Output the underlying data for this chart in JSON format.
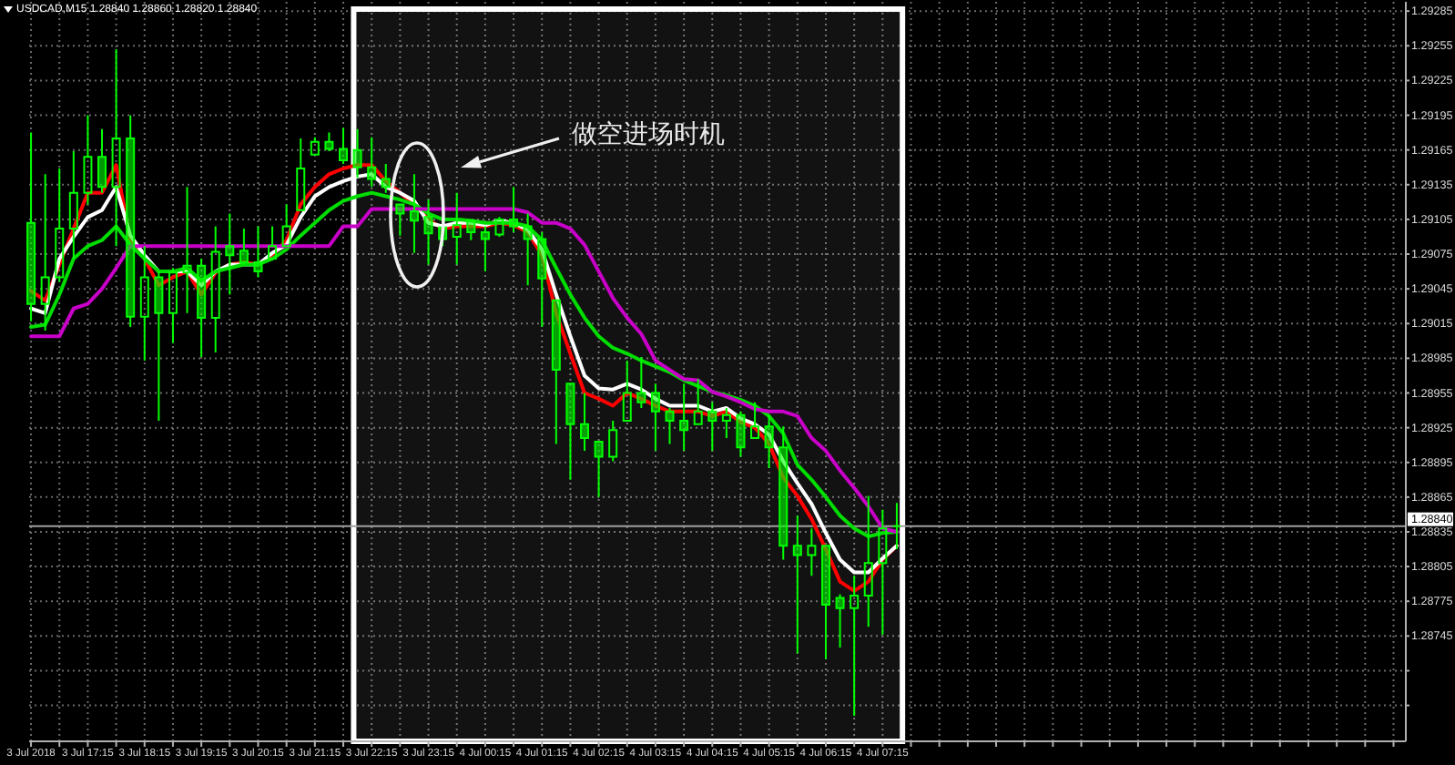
{
  "chart_data": {
    "type": "candlestick",
    "title": "USDCAD,M15 1.28840 1.28860 1.28820 1.28840",
    "color": "#00ff00",
    "x": [
      "2018-07-03T16:15",
      "2018-07-03T16:30",
      "2018-07-03T16:45",
      "2018-07-03T17:00",
      "2018-07-03T17:15",
      "2018-07-03T17:30",
      "2018-07-03T17:45",
      "2018-07-03T18:00",
      "2018-07-03T18:15",
      "2018-07-03T18:30",
      "2018-07-03T18:45",
      "2018-07-03T19:00",
      "2018-07-03T19:15",
      "2018-07-03T19:30",
      "2018-07-03T19:45",
      "2018-07-03T20:00",
      "2018-07-03T20:15",
      "2018-07-03T20:30",
      "2018-07-03T20:45",
      "2018-07-03T21:00",
      "2018-07-03T21:15",
      "2018-07-03T21:30",
      "2018-07-03T21:45",
      "2018-07-03T22:00",
      "2018-07-03T22:15",
      "2018-07-03T22:30",
      "2018-07-03T22:45",
      "2018-07-03T23:00",
      "2018-07-03T23:15",
      "2018-07-03T23:30",
      "2018-07-03T23:45",
      "2018-07-04T00:00",
      "2018-07-04T00:15",
      "2018-07-04T00:30",
      "2018-07-04T00:45",
      "2018-07-04T01:00",
      "2018-07-04T01:15",
      "2018-07-04T01:30",
      "2018-07-04T01:45",
      "2018-07-04T02:00",
      "2018-07-04T02:15",
      "2018-07-04T02:30",
      "2018-07-04T02:45",
      "2018-07-04T03:00",
      "2018-07-04T03:15",
      "2018-07-04T03:30",
      "2018-07-04T03:45",
      "2018-07-04T04:00",
      "2018-07-04T04:15",
      "2018-07-04T04:30",
      "2018-07-04T04:45",
      "2018-07-04T05:00",
      "2018-07-04T05:15",
      "2018-07-04T05:30",
      "2018-07-04T05:45",
      "2018-07-04T06:00",
      "2018-07-04T06:15",
      "2018-07-04T06:30",
      "2018-07-04T06:45",
      "2018-07-04T07:00",
      "2018-07-04T07:15",
      "2018-07-04T07:30"
    ],
    "ohlc": [
      [
        1.29102,
        1.2918,
        1.29017,
        1.29032
      ],
      [
        1.29032,
        1.29144,
        1.29009,
        1.29055
      ],
      [
        1.29055,
        1.29149,
        1.29051,
        1.29097
      ],
      [
        1.29097,
        1.29164,
        1.29071,
        1.29128
      ],
      [
        1.29128,
        1.29195,
        1.29118,
        1.29159
      ],
      [
        1.29159,
        1.29183,
        1.29128,
        1.29133
      ],
      [
        1.29133,
        1.29252,
        1.29082,
        1.29175
      ],
      [
        1.29175,
        1.29195,
        1.29012,
        1.29021
      ],
      [
        1.29021,
        1.29082,
        1.28983,
        1.29055
      ],
      [
        1.29055,
        1.2906,
        1.28931,
        1.29024
      ],
      [
        1.29024,
        1.29063,
        1.28998,
        1.29059
      ],
      [
        1.29059,
        1.29133,
        1.29024,
        1.29065
      ],
      [
        1.29065,
        1.29071,
        1.28986,
        1.2902
      ],
      [
        1.2902,
        1.29099,
        1.2899,
        1.29077
      ],
      [
        1.29082,
        1.2911,
        1.2904,
        1.29074
      ],
      [
        1.29078,
        1.29097,
        1.29066,
        1.29068
      ],
      [
        1.29068,
        1.29099,
        1.29055,
        1.2906
      ],
      [
        1.29071,
        1.29099,
        1.29071,
        1.29082
      ],
      [
        1.29082,
        1.29118,
        1.29082,
        1.29099
      ],
      [
        1.29113,
        1.29175,
        1.29113,
        1.29149
      ],
      [
        1.29161,
        1.29176,
        1.29161,
        1.29172
      ],
      [
        1.29172,
        1.2918,
        1.29164,
        1.29166
      ],
      [
        1.29166,
        1.29184,
        1.29153,
        1.29156
      ],
      [
        1.29165,
        1.29183,
        1.29141,
        1.2915
      ],
      [
        1.2915,
        1.29176,
        1.29133,
        1.2914
      ],
      [
        1.2914,
        1.29153,
        1.29128,
        1.29133
      ],
      [
        1.29118,
        1.29118,
        1.29091,
        1.2911
      ],
      [
        1.29112,
        1.29144,
        1.29076,
        1.29104
      ],
      [
        1.29107,
        1.29122,
        1.29066,
        1.29093
      ],
      [
        1.29098,
        1.29105,
        1.29082,
        1.29088
      ],
      [
        1.2909,
        1.29128,
        1.29066,
        1.291
      ],
      [
        1.29104,
        1.29105,
        1.29087,
        1.29094
      ],
      [
        1.29094,
        1.29099,
        1.2906,
        1.29088
      ],
      [
        1.29092,
        1.29107,
        1.2909,
        1.29105
      ],
      [
        1.29105,
        1.29133,
        1.29094,
        1.29099
      ],
      [
        1.29099,
        1.2911,
        1.29048,
        1.29088
      ],
      [
        1.29088,
        1.29094,
        1.29012,
        1.29054
      ],
      [
        1.29035,
        1.29035,
        1.28911,
        1.28975
      ],
      [
        1.28963,
        1.28963,
        1.2888,
        1.28928
      ],
      [
        1.28928,
        1.28955,
        1.28905,
        1.28916
      ],
      [
        1.28913,
        1.28913,
        1.28865,
        1.289
      ],
      [
        1.289,
        1.28931,
        1.28896,
        1.28923
      ],
      [
        1.28931,
        1.28983,
        1.28931,
        1.28955
      ],
      [
        1.28955,
        1.28986,
        1.28942,
        1.28947
      ],
      [
        1.28955,
        1.28963,
        1.28905,
        1.28939
      ],
      [
        1.28939,
        1.28942,
        1.28911,
        1.28931
      ],
      [
        1.28931,
        1.28963,
        1.28905,
        1.28923
      ],
      [
        1.28928,
        1.28967,
        1.28928,
        1.28939
      ],
      [
        1.28939,
        1.28947,
        1.28905,
        1.28931
      ],
      [
        1.28931,
        1.28942,
        1.28916,
        1.28936
      ],
      [
        1.28936,
        1.28939,
        1.289,
        1.28908
      ],
      [
        1.28916,
        1.28947,
        1.28916,
        1.28926
      ],
      [
        1.28926,
        1.28936,
        1.2889,
        1.28908
      ],
      [
        1.28908,
        1.28926,
        1.28811,
        1.28823
      ],
      [
        1.28823,
        1.28849,
        1.2873,
        1.28815
      ],
      [
        1.28815,
        1.28838,
        1.28797,
        1.28823
      ],
      [
        1.28823,
        1.28823,
        1.28725,
        1.28772
      ],
      [
        1.28778,
        1.28781,
        1.28735,
        1.28769
      ],
      [
        1.28769,
        1.28797,
        1.28676,
        1.2878
      ],
      [
        1.2878,
        1.28866,
        1.28753,
        1.28808
      ],
      [
        1.28808,
        1.28854,
        1.28746,
        1.28838
      ],
      [
        1.2884,
        1.2886,
        1.2882,
        1.2884
      ]
    ],
    "series": [
      {
        "type": "line",
        "color": "#ff0000",
        "values": [
          1.29043,
          1.29035,
          1.29066,
          1.29097,
          1.29128,
          1.29128,
          1.29152,
          1.29087,
          1.29071,
          1.29048,
          1.29055,
          1.2906,
          1.2904,
          1.29059,
          1.29066,
          1.29068,
          1.29066,
          1.29074,
          1.29087,
          1.29118,
          1.29133,
          1.29144,
          1.29149,
          1.29152,
          1.29152,
          1.29138,
          1.29128,
          1.29118,
          1.29105,
          1.29097,
          1.29099,
          1.29099,
          1.29099,
          1.29102,
          1.291,
          1.29094,
          1.29074,
          1.29024,
          1.28989,
          1.28955,
          1.2895,
          1.28944,
          1.28955,
          1.2895,
          1.28944,
          1.28939,
          1.28939,
          1.28939,
          1.28935,
          1.28939,
          1.2893,
          1.28925,
          1.28911,
          1.28882,
          1.28866,
          1.28846,
          1.2882,
          1.28792,
          1.28784,
          1.28792,
          1.28811,
          1.28823
        ]
      },
      {
        "type": "line",
        "color": "#ffffff",
        "values": [
          1.29028,
          1.29024,
          1.29071,
          1.2909,
          1.29107,
          1.29113,
          1.29133,
          1.29091,
          1.29074,
          1.2906,
          1.2906,
          1.2906,
          1.29048,
          1.2906,
          1.29066,
          1.29066,
          1.29066,
          1.29076,
          1.29083,
          1.29107,
          1.29125,
          1.29133,
          1.29138,
          1.29142,
          1.29144,
          1.29133,
          1.29128,
          1.29121,
          1.29102,
          1.29099,
          1.29102,
          1.29102,
          1.291,
          1.29104,
          1.29102,
          1.29096,
          1.29079,
          1.2904,
          1.29004,
          1.2897,
          1.28959,
          1.28958,
          1.28963,
          1.28958,
          1.2895,
          1.28944,
          1.28944,
          1.28944,
          1.28939,
          1.28942,
          1.28933,
          1.28928,
          1.28919,
          1.28896,
          1.28877,
          1.28859,
          1.28834,
          1.28811,
          1.288,
          1.288,
          1.28812,
          1.28823
        ]
      },
      {
        "type": "line",
        "color": "#00dd00",
        "values": [
          1.29012,
          1.29014,
          1.2904,
          1.29071,
          1.29082,
          1.29087,
          1.29099,
          1.29083,
          1.29071,
          1.2906,
          1.2906,
          1.29063,
          1.29052,
          1.2906,
          1.29063,
          1.29066,
          1.29066,
          1.29071,
          1.29079,
          1.29091,
          1.29102,
          1.29113,
          1.29121,
          1.29125,
          1.29128,
          1.29125,
          1.29122,
          1.29118,
          1.2911,
          1.29105,
          1.29105,
          1.29104,
          1.29102,
          1.29102,
          1.29102,
          1.29099,
          1.29087,
          1.29063,
          1.2904,
          1.2902,
          1.29004,
          1.28994,
          1.28989,
          1.28983,
          1.28978,
          1.28973,
          1.28966,
          1.28961,
          1.28956,
          1.28953,
          1.28949,
          1.28944,
          1.28935,
          1.2892,
          1.28893,
          1.2888,
          1.28865,
          1.28849,
          1.28838,
          1.28831,
          1.28834,
          1.28835
        ]
      },
      {
        "type": "line",
        "color": "#c800c8",
        "values": [
          1.29004,
          1.29004,
          1.29004,
          1.29028,
          1.29032,
          1.29045,
          1.29063,
          1.29082,
          1.29082,
          1.29082,
          1.29082,
          1.29082,
          1.29082,
          1.29082,
          1.29082,
          1.29082,
          1.29082,
          1.29082,
          1.29082,
          1.29082,
          1.29082,
          1.29082,
          1.29099,
          1.29099,
          1.29114,
          1.29114,
          1.29114,
          1.29114,
          1.29114,
          1.29114,
          1.29114,
          1.29114,
          1.29114,
          1.29114,
          1.29114,
          1.29111,
          1.29102,
          1.29102,
          1.29097,
          1.29083,
          1.2906,
          1.29037,
          1.2902,
          1.29006,
          1.28983,
          1.28975,
          1.28967,
          1.28966,
          1.28956,
          1.28952,
          1.28947,
          1.28941,
          1.28939,
          1.28939,
          1.28935,
          1.28916,
          1.28905,
          1.28888,
          1.28873,
          1.28857,
          1.28838,
          1.28835
        ]
      }
    ],
    "xlim": [
      "2018-07-03T16:13",
      "2018-07-04T16:28"
    ],
    "xticks": [
      {
        "value": "2018-07-03T16:15",
        "label": "3 Jul 2018"
      },
      {
        "value": "2018-07-03T16:45",
        "label": null
      },
      {
        "value": "2018-07-03T17:15",
        "label": "3 Jul 17:15"
      },
      {
        "value": "2018-07-03T17:45",
        "label": null
      },
      {
        "value": "2018-07-03T18:15",
        "label": "3 Jul 18:15"
      },
      {
        "value": "2018-07-03T18:45",
        "label": null
      },
      {
        "value": "2018-07-03T19:15",
        "label": "3 Jul 19:15"
      },
      {
        "value": "2018-07-03T19:45",
        "label": null
      },
      {
        "value": "2018-07-03T20:15",
        "label": "3 Jul 20:15"
      },
      {
        "value": "2018-07-03T20:45",
        "label": null
      },
      {
        "value": "2018-07-03T21:15",
        "label": "3 Jul 21:15"
      },
      {
        "value": "2018-07-03T21:45",
        "label": null
      },
      {
        "value": "2018-07-03T22:15",
        "label": "3 Jul 22:15"
      },
      {
        "value": "2018-07-03T22:45",
        "label": null
      },
      {
        "value": "2018-07-03T23:15",
        "label": "3 Jul 23:15"
      },
      {
        "value": "2018-07-03T23:45",
        "label": null
      },
      {
        "value": "2018-07-04T00:15",
        "label": "4 Jul 00:15"
      },
      {
        "value": "2018-07-04T00:45",
        "label": null
      },
      {
        "value": "2018-07-04T01:15",
        "label": "4 Jul 01:15"
      },
      {
        "value": "2018-07-04T01:45",
        "label": null
      },
      {
        "value": "2018-07-04T02:15",
        "label": "4 Jul 02:15"
      },
      {
        "value": "2018-07-04T02:45",
        "label": null
      },
      {
        "value": "2018-07-04T03:15",
        "label": "4 Jul 03:15"
      },
      {
        "value": "2018-07-04T03:45",
        "label": null
      },
      {
        "value": "2018-07-04T04:15",
        "label": "4 Jul 04:15"
      },
      {
        "value": "2018-07-04T04:45",
        "label": null
      },
      {
        "value": "2018-07-04T05:15",
        "label": "4 Jul 05:15"
      },
      {
        "value": "2018-07-04T05:45",
        "label": null
      },
      {
        "value": "2018-07-04T06:15",
        "label": "4 Jul 06:15"
      },
      {
        "value": "2018-07-04T06:45",
        "label": null
      },
      {
        "value": "2018-07-04T07:15",
        "label": "4 Jul 07:15"
      },
      {
        "value": "2018-07-04T07:45",
        "label": null
      },
      {
        "value": "2018-07-04T08:15",
        "label": null
      },
      {
        "value": "2018-07-04T08:45",
        "label": null
      },
      {
        "value": "2018-07-04T09:15",
        "label": null
      },
      {
        "value": "2018-07-04T09:45",
        "label": null
      },
      {
        "value": "2018-07-04T10:15",
        "label": null
      },
      {
        "value": "2018-07-04T10:45",
        "label": null
      },
      {
        "value": "2018-07-04T11:15",
        "label": null
      },
      {
        "value": "2018-07-04T11:45",
        "label": null
      },
      {
        "value": "2018-07-04T12:15",
        "label": null
      },
      {
        "value": "2018-07-04T12:45",
        "label": null
      },
      {
        "value": "2018-07-04T13:15",
        "label": null
      },
      {
        "value": "2018-07-04T13:45",
        "label": null
      },
      {
        "value": "2018-07-04T14:15",
        "label": null
      },
      {
        "value": "2018-07-04T14:45",
        "label": null
      },
      {
        "value": "2018-07-04T15:15",
        "label": null
      },
      {
        "value": "2018-07-04T15:45",
        "label": null
      },
      {
        "value": "2018-07-04T16:15",
        "label": null
      }
    ],
    "ylim": [
      1.28654,
      1.29293
    ],
    "yticks": [
      1.29285,
      1.29255,
      1.29225,
      1.29195,
      1.29165,
      1.29135,
      1.29105,
      1.29075,
      1.29045,
      1.29015,
      1.28985,
      1.28955,
      1.28925,
      1.28895,
      1.28865,
      1.28835,
      1.28805,
      1.28775,
      1.28745,
      {
        "value": 1.28715,
        "label": null
      },
      {
        "value": 1.28685,
        "label": null
      }
    ],
    "grid": true,
    "ref_lines": [
      {
        "axis": "y",
        "value": 1.2884,
        "label": "1.28840",
        "color": "#a0a0a0"
      }
    ],
    "bands": [
      {
        "axis": "x",
        "from": "2018-07-03T21:56",
        "to": "2018-07-04T07:36",
        "color": "#ffffff"
      }
    ],
    "annotations": [
      "做空进场时机"
    ]
  }
}
